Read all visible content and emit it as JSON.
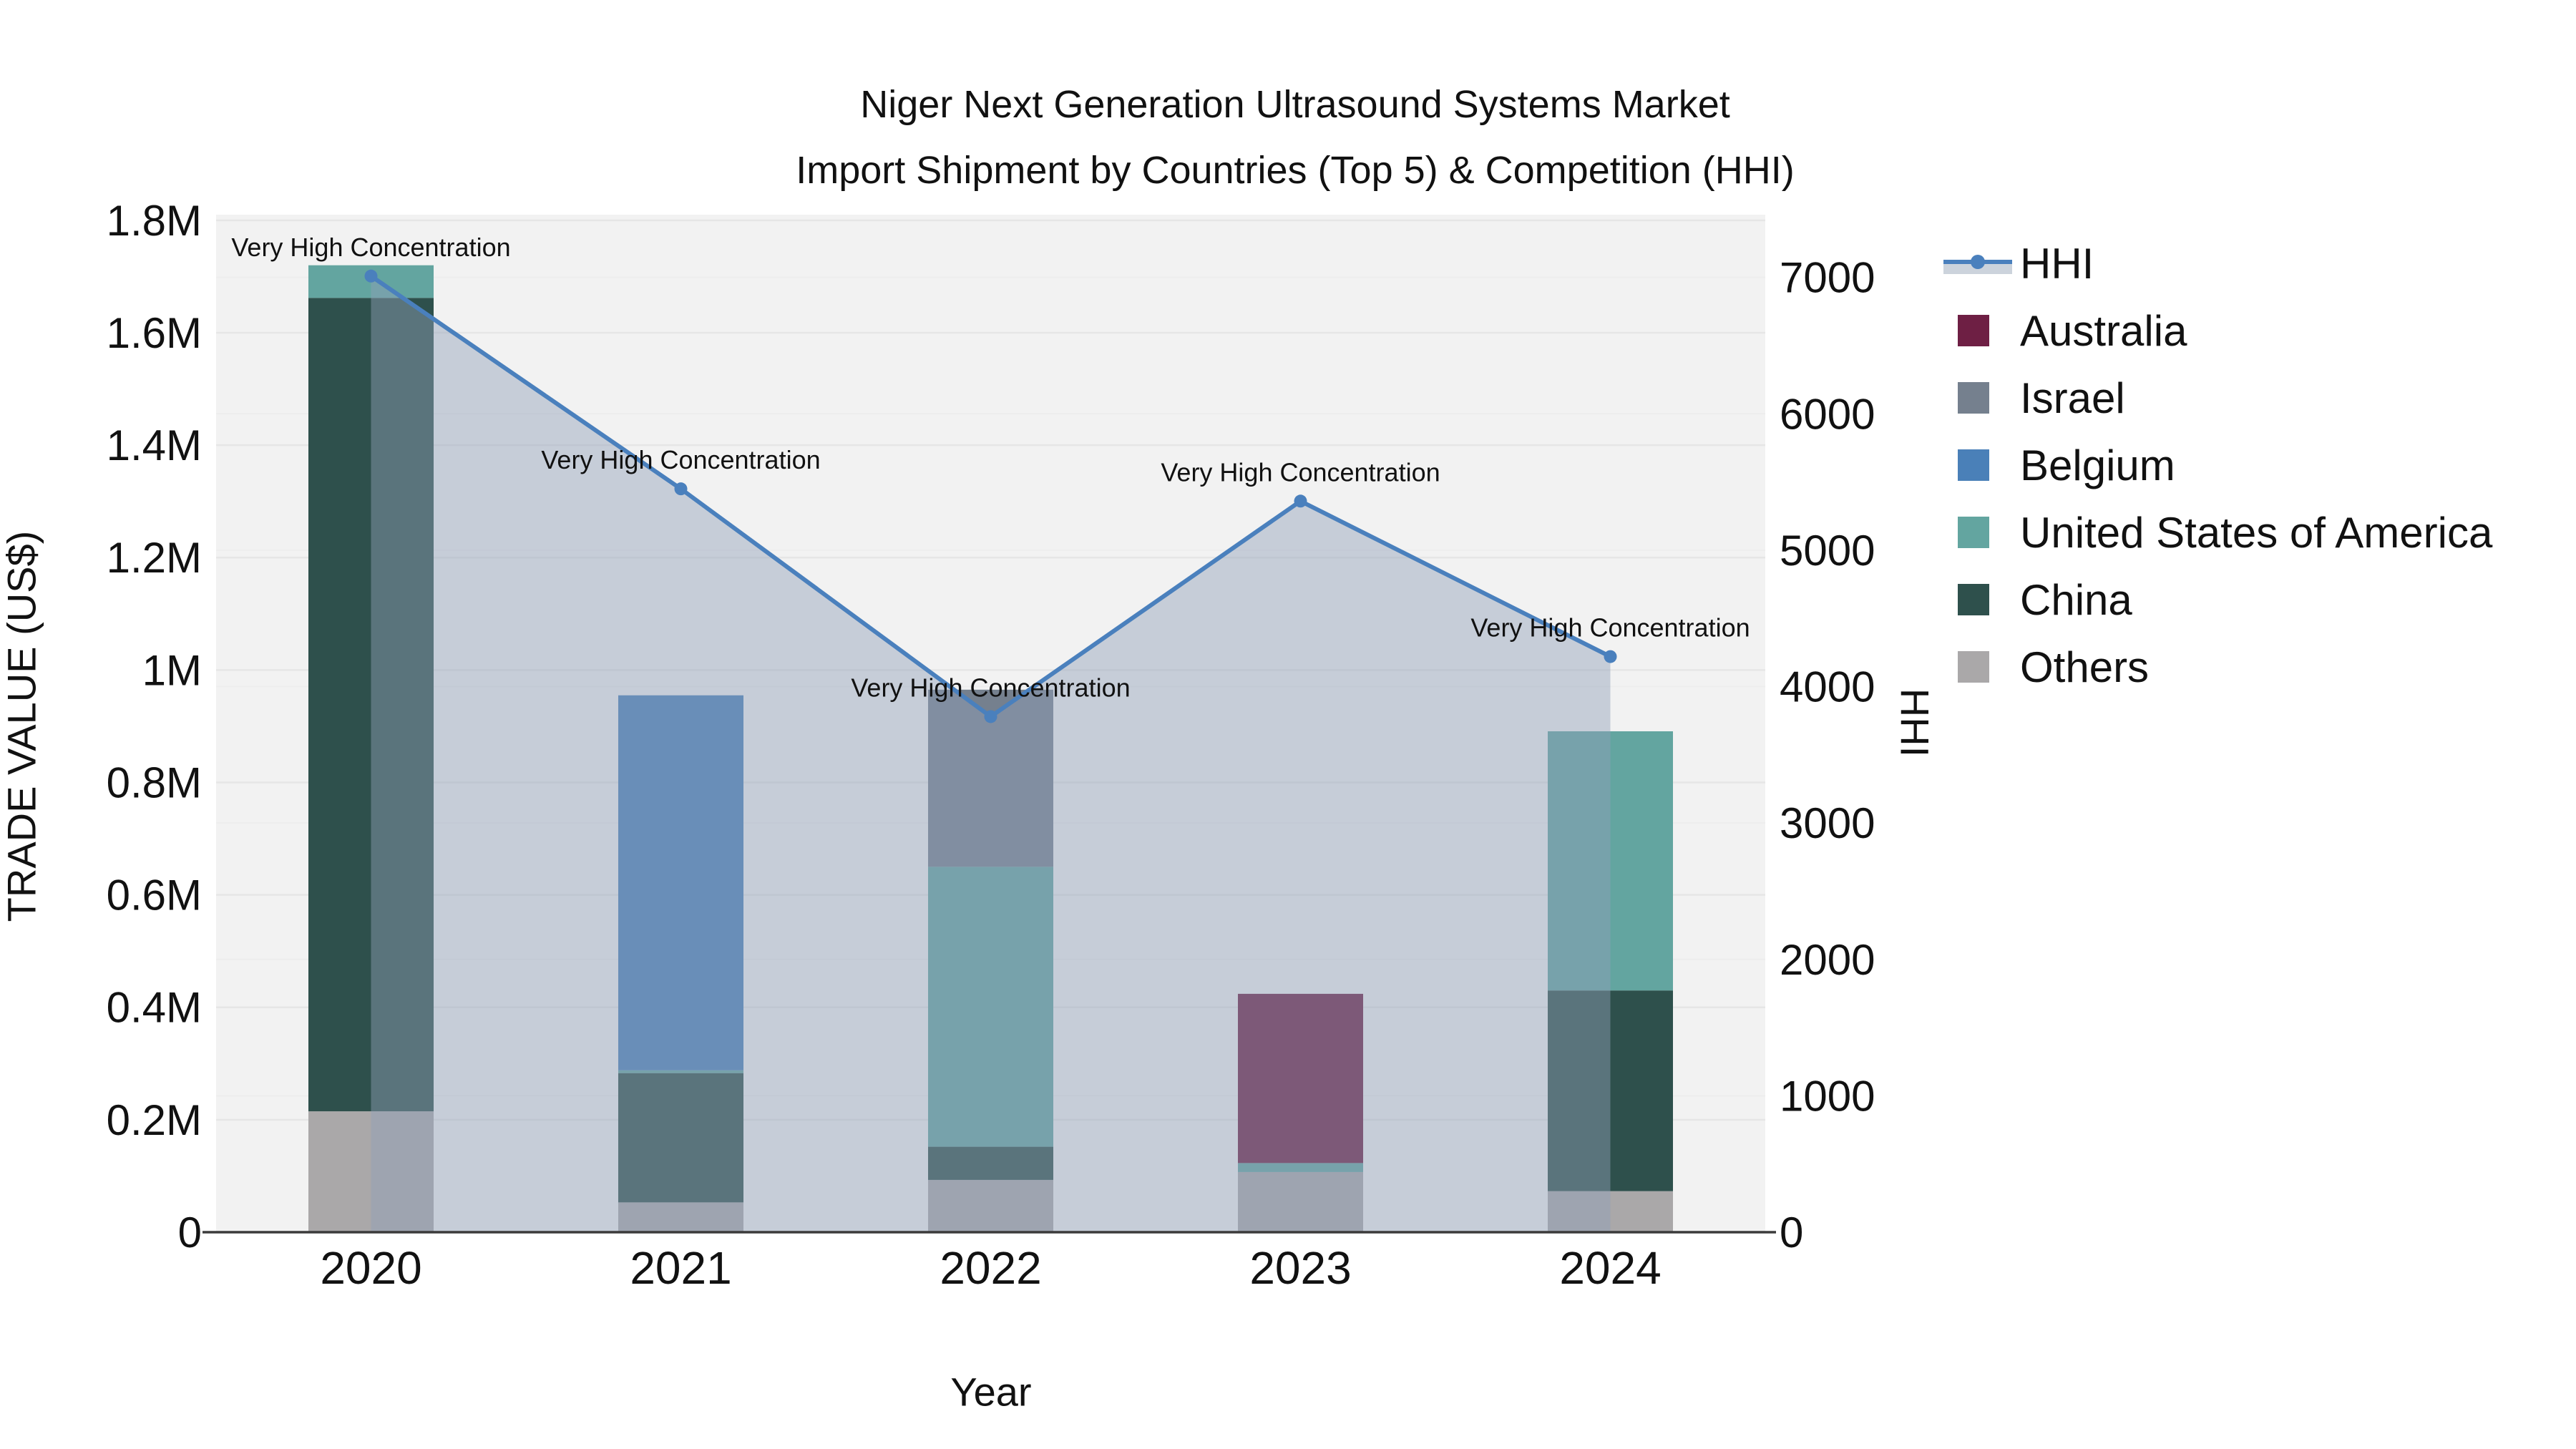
{
  "title": {
    "line1": "Niger Next Generation Ultrasound Systems Market",
    "line2": "Import Shipment by Countries (Top 5) & Competition (HHI)"
  },
  "axes": {
    "left": {
      "title": "TRADE VALUE (US$)",
      "tick_labels": [
        "0",
        "0.2M",
        "0.4M",
        "0.6M",
        "0.8M",
        "1M",
        "1.2M",
        "1.4M",
        "1.6M",
        "1.8M"
      ],
      "tick_values": [
        0,
        200000,
        400000,
        600000,
        800000,
        1000000,
        1200000,
        1400000,
        1600000,
        1800000
      ],
      "range": [
        0,
        1810000
      ]
    },
    "right": {
      "title": "HHI",
      "tick_labels": [
        "0",
        "1000",
        "2000",
        "3000",
        "4000",
        "5000",
        "6000",
        "7000"
      ],
      "tick_values": [
        0,
        1000,
        2000,
        3000,
        4000,
        5000,
        6000,
        7000
      ],
      "range": [
        0,
        7460
      ]
    },
    "x": {
      "title": "Year",
      "categories": [
        "2020",
        "2021",
        "2022",
        "2023",
        "2024"
      ]
    }
  },
  "legend": {
    "items": [
      {
        "label": "HHI",
        "type": "line",
        "color": "#4a80bd"
      },
      {
        "label": "Australia",
        "type": "box",
        "color": "#6e1f44"
      },
      {
        "label": "Israel",
        "type": "box",
        "color": "#75808e"
      },
      {
        "label": "Belgium",
        "type": "box",
        "color": "#4a80b8"
      },
      {
        "label": "United States of America",
        "type": "box",
        "color": "#63a5a0"
      },
      {
        "label": "China",
        "type": "box",
        "color": "#2e504c"
      },
      {
        "label": "Others",
        "type": "box",
        "color": "#aaa8a9"
      }
    ]
  },
  "chart_data": {
    "type": "combo: stacked bar (left axis) + line with area fill (right axis)",
    "categories": [
      "2020",
      "2021",
      "2022",
      "2023",
      "2024"
    ],
    "bar_value_unit": "US$ trade value",
    "series": [
      {
        "name": "Australia",
        "color": "#6e1f44",
        "values": [
          0,
          0,
          0,
          301000,
          0
        ]
      },
      {
        "name": "Israel",
        "color": "#75808e",
        "values": [
          0,
          0,
          315000,
          0,
          0
        ]
      },
      {
        "name": "Belgium",
        "color": "#4a80b8",
        "values": [
          0,
          667000,
          0,
          0,
          0
        ]
      },
      {
        "name": "United States of America",
        "color": "#63a5a0",
        "values": [
          58000,
          5000,
          498000,
          16000,
          461000
        ]
      },
      {
        "name": "China",
        "color": "#2e504c",
        "values": [
          1447000,
          230000,
          59000,
          0,
          357000
        ]
      },
      {
        "name": "Others",
        "color": "#aaa8a9",
        "values": [
          215000,
          53000,
          93000,
          107000,
          73000
        ]
      }
    ],
    "bar_totals": [
      1720000,
      955000,
      965000,
      424000,
      891000
    ],
    "stack_order_bottom_to_top": [
      "Others",
      "China",
      "United States of America",
      "Belgium",
      "Israel",
      "Australia"
    ],
    "line_series": {
      "name": "HHI",
      "color": "#4a80bd",
      "fill_color": "rgba(145,160,184,0.45)",
      "values": [
        7010,
        5450,
        3780,
        5360,
        4220
      ],
      "annotations": [
        "Very High Concentration",
        "Very High Concentration",
        "Very High Concentration",
        "Very High Concentration",
        "Very High Concentration"
      ]
    },
    "axis_ranges": {
      "left": [
        0,
        1810000
      ],
      "right": [
        0,
        7460
      ]
    },
    "grid": true,
    "legend_position": "right",
    "title": "Niger Next Generation Ultrasound Systems Market — Import Shipment by Countries (Top 5) & Competition (HHI)",
    "xlabel": "Year",
    "ylabel_left": "TRADE VALUE (US$)",
    "ylabel_right": "HHI"
  },
  "colors": {
    "page_bg": "#ffffff",
    "plot_bg": "#f2f2f2",
    "grid_left": "#e6e6e6",
    "grid_right": "#ededed",
    "axis_line": "#3b3b3b",
    "tick_text": "#111111",
    "annotation_text": "#111111"
  }
}
